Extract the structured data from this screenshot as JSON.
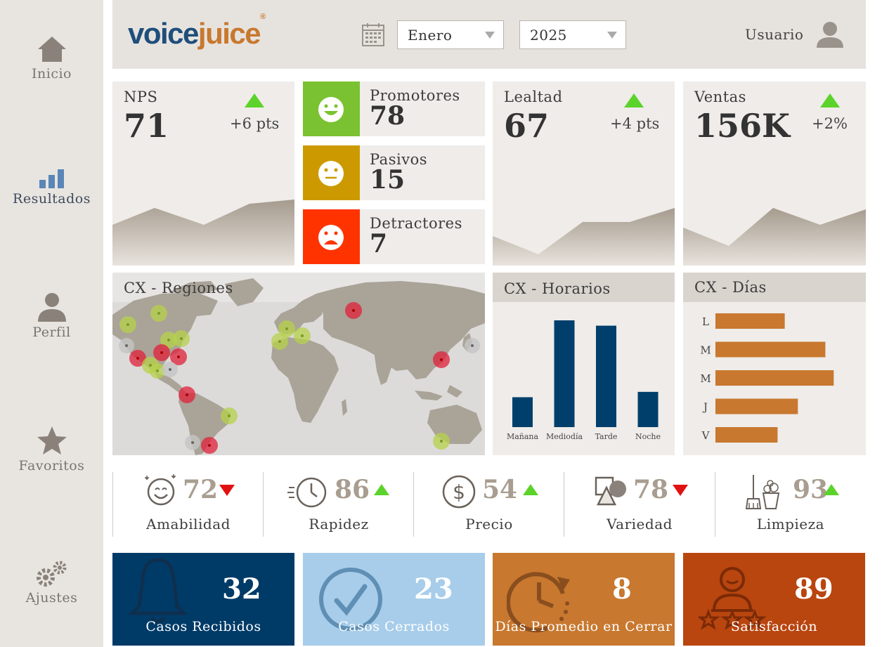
{
  "sidebar": {
    "items": [
      {
        "label": "Inicio",
        "icon": "home-icon"
      },
      {
        "label": "Resultados",
        "icon": "bar-chart-icon"
      },
      {
        "label": "Perfil",
        "icon": "user-icon"
      },
      {
        "label": "Favoritos",
        "icon": "star-icon"
      },
      {
        "label": "Ajustes",
        "icon": "gears-icon"
      }
    ]
  },
  "header": {
    "logo_part1": "voice",
    "logo_part2": "juice",
    "logo_mark": "®",
    "month": "Enero",
    "year": "2025",
    "user_label": "Usuario"
  },
  "kpis": {
    "nps": {
      "title": "NPS",
      "value": "71",
      "delta": "+6 pts",
      "trend": "up"
    },
    "lealtad": {
      "title": "Lealtad",
      "value": "67",
      "delta": "+4 pts",
      "trend": "up"
    },
    "ventas": {
      "title": "Ventas",
      "value": "156K",
      "delta": "+2%",
      "trend": "up"
    }
  },
  "nps_breakdown": [
    {
      "label": "Promotores",
      "value": "78",
      "color": "#7ac231",
      "icon": "happy-face-icon"
    },
    {
      "label": "Pasivos",
      "value": "15",
      "color": "#cc9a00",
      "icon": "neutral-face-icon"
    },
    {
      "label": "Detractores",
      "value": "7",
      "color": "#ff3300",
      "icon": "sad-face-icon"
    }
  ],
  "map": {
    "title": "CX - Regiones"
  },
  "horarios": {
    "title": "CX - Horarios",
    "chart_data": {
      "type": "bar",
      "categories": [
        "Mañana",
        "Mediodía",
        "Tarde",
        "Noche"
      ],
      "values": [
        28,
        100,
        95,
        33
      ],
      "color": "#003f6b"
    }
  },
  "dias": {
    "title": "CX - Días",
    "chart_data": {
      "type": "bar",
      "orientation": "horizontal",
      "categories": [
        "L",
        "M",
        "M",
        "J",
        "V"
      ],
      "values": [
        58,
        92,
        99,
        69,
        52
      ],
      "color": "#c8782f"
    }
  },
  "metrics": [
    {
      "label": "Amabilidad",
      "value": "72",
      "trend": "down",
      "icon": "smile-icon"
    },
    {
      "label": "Rapidez",
      "value": "86",
      "trend": "up",
      "icon": "clock-icon"
    },
    {
      "label": "Precio",
      "value": "54",
      "trend": "up",
      "icon": "dollar-icon"
    },
    {
      "label": "Variedad",
      "value": "78",
      "trend": "down",
      "icon": "shapes-icon"
    },
    {
      "label": "Limpieza",
      "value": "93",
      "trend": "up",
      "icon": "cleaning-icon"
    }
  ],
  "tiles": [
    {
      "label": "Casos Recibidos",
      "value": "32",
      "color": "#003b68",
      "icon": "bell-icon"
    },
    {
      "label": "Casos Cerrados",
      "value": "23",
      "color": "#a7cdea",
      "icon": "check-circle-icon"
    },
    {
      "label": "Días Promedio en Cerrar",
      "value": "8",
      "color": "#c8782f",
      "icon": "clock-arrow-icon"
    },
    {
      "label": "Satisfacción",
      "value": "89",
      "color": "#b9450f",
      "icon": "person-stars-icon"
    }
  ],
  "colors": {
    "up": "#5bd32a",
    "down": "#e21111",
    "sidebar": "#e8e5e1",
    "card": "#efece9"
  }
}
